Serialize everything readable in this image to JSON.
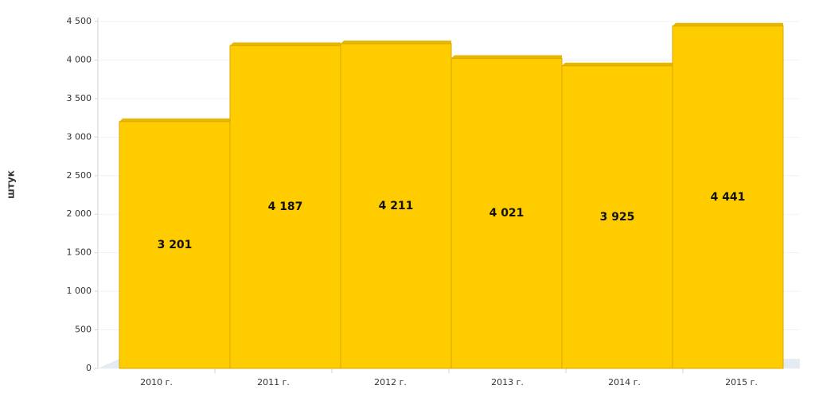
{
  "chart_data": {
    "type": "bar",
    "y_label": "штук",
    "categories": [
      "2010 г.",
      "2011 г.",
      "2012 г.",
      "2013 г.",
      "2014 г.",
      "2015 г."
    ],
    "values": [
      3201,
      4187,
      4211,
      4021,
      3925,
      4441
    ],
    "value_labels": [
      "3 201",
      "4 187",
      "4 211",
      "4 021",
      "3 925",
      "4 441"
    ],
    "color": "#ffcc00",
    "ylim": [
      0,
      4500
    ],
    "yticks": [
      0,
      {
        "value": 500,
        "label": "500"
      },
      {
        "value": 1000,
        "label": "1 000"
      },
      {
        "value": 1500,
        "label": "1 500"
      },
      {
        "value": 2000,
        "label": "2 000"
      },
      {
        "value": 2500,
        "label": "2 500"
      },
      {
        "value": 3000,
        "label": "3 000"
      },
      {
        "value": 3500,
        "label": "3 500"
      },
      {
        "value": 4000,
        "label": "4 000"
      },
      {
        "value": 4500,
        "label": "4 500"
      }
    ],
    "grid": true
  }
}
